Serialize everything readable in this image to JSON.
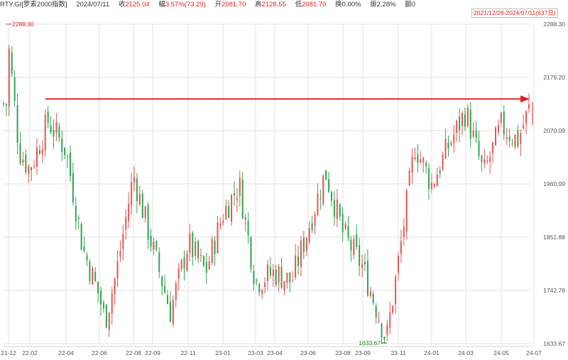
{
  "header": {
    "symbol": "RTY.GI[罗素2000指数]",
    "date": "2024/07/11",
    "close_label": "收",
    "close_value": "2125.04",
    "change_label": "幅",
    "change_value": "3.57%(73.29)",
    "open_label": "开",
    "open_value": "2081.70",
    "high_label": "高",
    "high_value": "2128.55",
    "low_label": "低",
    "low_value": "2081.70",
    "turnover_label": "换",
    "turnover_value": "0.00%",
    "amplitude_label": "振",
    "amplitude_value": "2.28%",
    "amount_label": "额",
    "amount_value": "0"
  },
  "range_tag": "2021/12/28-2024/07/11(637日)",
  "colors": {
    "up": "#e8534f",
    "down": "#2ea44f",
    "arrow": "#e02020",
    "grid": "#e2e2e2"
  },
  "chart_data": {
    "type": "candlestick",
    "title": "",
    "xlabel": "",
    "ylabel": "",
    "ylim": [
      1633.67,
      2288.3
    ],
    "y_ticks": [
      "2288.30",
      "2179.20",
      "2070.09",
      "1960.99",
      "1851.88",
      "1742.78",
      "1633.67"
    ],
    "x_ticks": [
      "21-12",
      "22-02",
      "22-04",
      "22-06",
      "22-08",
      "22-09",
      "22-11",
      "23-01",
      "23-03",
      "23-04",
      "23-06",
      "23-08",
      "23-09",
      "23-11",
      "24-01",
      "24-03",
      "24-05",
      "24-07"
    ],
    "grid": true,
    "high_marker": {
      "label": "2288.30",
      "value": 2288.3,
      "date": "21-12"
    },
    "low_marker": {
      "label": "1633.67",
      "value": 1633.67,
      "date": "23-10"
    },
    "reference_arrow": {
      "value": 2135,
      "from": "22-04",
      "to": "24-07"
    },
    "close_path": [
      [
        "21-12",
        2245
      ],
      [
        "22-01",
        2030
      ],
      [
        "22-02",
        1990
      ],
      [
        "22-03",
        2090
      ],
      [
        "22-04",
        2030
      ],
      [
        "22-05",
        1830
      ],
      [
        "22-06",
        1730
      ],
      [
        "22-06",
        1680
      ],
      [
        "22-07",
        1780
      ],
      [
        "22-08",
        1980
      ],
      [
        "22-09",
        1830
      ],
      [
        "22-10",
        1700
      ],
      [
        "22-11",
        1840
      ],
      [
        "22-12",
        1780
      ],
      [
        "23-01",
        1900
      ],
      [
        "23-02",
        1960
      ],
      [
        "23-03",
        1760
      ],
      [
        "23-04",
        1780
      ],
      [
        "23-05",
        1760
      ],
      [
        "23-06",
        1870
      ],
      [
        "23-07",
        1985
      ],
      [
        "23-08",
        1860
      ],
      [
        "23-09",
        1790
      ],
      [
        "23-10",
        1680
      ],
      [
        "23-10",
        1640
      ],
      [
        "23-11",
        1800
      ],
      [
        "23-12",
        2040
      ],
      [
        "24-01",
        1960
      ],
      [
        "24-02",
        2040
      ],
      [
        "24-03",
        2110
      ],
      [
        "24-04",
        1980
      ],
      [
        "24-05",
        2080
      ],
      [
        "24-06",
        2050
      ],
      [
        "24-07",
        2125
      ]
    ],
    "last_candle": {
      "open": 2081.7,
      "high": 2128.55,
      "low": 2081.7,
      "close": 2125.04
    }
  }
}
